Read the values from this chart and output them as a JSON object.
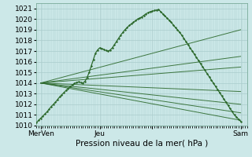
{
  "xlabel": "Pression niveau de la mer( hPa )",
  "ylim": [
    1010,
    1021.5
  ],
  "xlim": [
    0,
    100
  ],
  "yticks": [
    1010,
    1011,
    1012,
    1013,
    1014,
    1015,
    1016,
    1017,
    1018,
    1019,
    1020,
    1021
  ],
  "xtick_positions": [
    2,
    30,
    55,
    97
  ],
  "xtick_labels": [
    "MerVen",
    "Jeu",
    "",
    "Sam"
  ],
  "bg_color": "#cce8e8",
  "grid_color": "#aacccc",
  "line_color": "#2d6a2d",
  "dot_color": "#2d6a2d",
  "main_series_x": [
    0,
    1,
    2,
    3,
    4,
    5,
    6,
    7,
    8,
    9,
    10,
    11,
    12,
    13,
    14,
    15,
    16,
    17,
    18,
    19,
    20,
    21,
    22,
    23,
    24,
    25,
    26,
    27,
    28,
    29,
    30,
    31,
    32,
    33,
    34,
    35,
    36,
    37,
    38,
    39,
    40,
    41,
    42,
    43,
    44,
    45,
    46,
    47,
    48,
    49,
    50,
    51,
    52,
    53,
    54,
    55,
    56,
    57,
    58,
    59,
    60,
    61,
    62,
    63,
    64,
    65,
    66,
    67,
    68,
    69,
    70,
    71,
    72,
    73,
    74,
    75,
    76,
    77,
    78,
    79,
    80,
    81,
    82,
    83,
    84,
    85,
    86,
    87,
    88,
    89,
    90,
    91,
    92,
    93,
    94,
    95,
    96,
    97
  ],
  "main_series_y": [
    1010.3,
    1010.5,
    1010.7,
    1010.9,
    1011.1,
    1011.3,
    1011.55,
    1011.8,
    1012.0,
    1012.2,
    1012.45,
    1012.7,
    1012.9,
    1013.1,
    1013.3,
    1013.5,
    1013.65,
    1013.8,
    1013.95,
    1014.05,
    1014.1,
    1014.05,
    1014.0,
    1014.15,
    1014.5,
    1015.0,
    1015.6,
    1016.2,
    1016.8,
    1017.1,
    1017.3,
    1017.25,
    1017.15,
    1017.05,
    1017.0,
    1017.1,
    1017.3,
    1017.6,
    1017.9,
    1018.2,
    1018.5,
    1018.75,
    1019.0,
    1019.2,
    1019.4,
    1019.55,
    1019.7,
    1019.85,
    1020.0,
    1020.1,
    1020.2,
    1020.35,
    1020.5,
    1020.6,
    1020.7,
    1020.75,
    1020.8,
    1020.85,
    1020.9,
    1020.7,
    1020.5,
    1020.3,
    1020.1,
    1019.9,
    1019.7,
    1019.45,
    1019.2,
    1019.0,
    1018.75,
    1018.5,
    1018.2,
    1017.9,
    1017.6,
    1017.3,
    1017.0,
    1016.7,
    1016.4,
    1016.1,
    1015.8,
    1015.5,
    1015.2,
    1014.9,
    1014.6,
    1014.3,
    1014.0,
    1013.7,
    1013.4,
    1013.1,
    1012.8,
    1012.5,
    1012.2,
    1011.9,
    1011.6,
    1011.3,
    1011.0,
    1010.8,
    1010.6,
    1010.4
  ],
  "fan_lines": [
    {
      "x0": 2,
      "y0": 1014.0,
      "x1": 97,
      "y1": 1019.0
    },
    {
      "x0": 2,
      "y0": 1014.0,
      "x1": 97,
      "y1": 1016.5
    },
    {
      "x0": 2,
      "y0": 1014.0,
      "x1": 97,
      "y1": 1015.5
    },
    {
      "x0": 2,
      "y0": 1014.0,
      "x1": 97,
      "y1": 1013.2
    },
    {
      "x0": 2,
      "y0": 1014.0,
      "x1": 97,
      "y1": 1012.0
    },
    {
      "x0": 2,
      "y0": 1014.0,
      "x1": 97,
      "y1": 1011.2
    },
    {
      "x0": 2,
      "y0": 1014.0,
      "x1": 97,
      "y1": 1010.5
    }
  ]
}
